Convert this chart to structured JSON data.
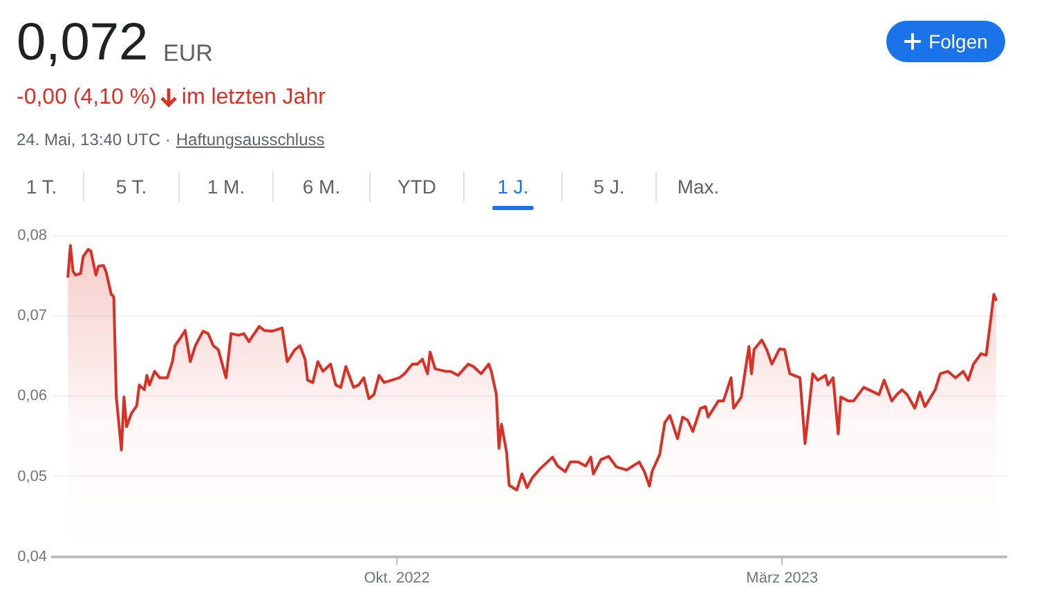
{
  "chart_data": {
    "type": "area",
    "title": "0,072",
    "annotations": [
      "EUR",
      "-0,00 (4,10 %)",
      "im letzten Jahr",
      "24. Mai, 13:40 UTC ·",
      "Haftungsausschluss",
      "1 T.",
      "5 T.",
      "1 M.",
      "6 M.",
      "YTD",
      "1 J.",
      "5 J.",
      "Max.",
      "Folgen"
    ],
    "x": [
      "2022-05-25",
      "2022-05-26",
      "2022-05-27",
      "2022-05-28",
      "2022-05-30",
      "2022-05-31",
      "2022-06-02",
      "2022-06-03",
      "2022-06-05",
      "2022-06-06",
      "2022-06-08",
      "2022-06-09",
      "2022-06-11",
      "2022-06-12",
      "2022-06-13",
      "2022-06-15",
      "2022-06-16",
      "2022-06-17",
      "2022-06-19",
      "2022-06-21",
      "2022-06-22",
      "2022-06-24",
      "2022-06-25",
      "2022-06-26",
      "2022-06-28",
      "2022-06-30",
      "2022-07-03",
      "2022-07-05",
      "2022-07-06",
      "2022-07-08",
      "2022-07-10",
      "2022-07-12",
      "2022-07-14",
      "2022-07-17",
      "2022-07-19",
      "2022-07-21",
      "2022-07-23",
      "2022-07-26",
      "2022-07-28",
      "2022-07-31",
      "2022-08-02",
      "2022-08-04",
      "2022-08-08",
      "2022-08-10",
      "2022-08-13",
      "2022-08-16",
      "2022-08-17",
      "2022-08-19",
      "2022-08-22",
      "2022-08-24",
      "2022-08-26",
      "2022-08-27",
      "2022-08-29",
      "2022-08-31",
      "2022-09-02",
      "2022-09-05",
      "2022-09-07",
      "2022-09-09",
      "2022-09-11",
      "2022-09-14",
      "2022-09-16",
      "2022-09-18",
      "2022-09-20",
      "2022-09-22",
      "2022-09-24",
      "2022-09-26",
      "2022-09-29",
      "2022-10-02",
      "2022-10-04",
      "2022-10-07",
      "2022-10-09",
      "2022-10-11",
      "2022-10-13",
      "2022-10-14",
      "2022-10-16",
      "2022-10-20",
      "2022-10-22",
      "2022-10-25",
      "2022-10-29",
      "2022-10-31",
      "2022-11-03",
      "2022-11-06",
      "2022-11-07",
      "2022-11-09",
      "2022-11-10",
      "2022-11-11",
      "2022-11-13",
      "2022-11-14",
      "2022-11-17",
      "2022-11-19",
      "2022-11-21",
      "2022-11-23",
      "2022-11-26",
      "2022-11-28",
      "2022-12-01",
      "2022-12-03",
      "2022-12-06",
      "2022-12-08",
      "2022-12-11",
      "2022-12-14",
      "2022-12-16",
      "2022-12-17",
      "2022-12-20",
      "2022-12-23",
      "2022-12-26",
      "2022-12-30",
      "2023-01-04",
      "2023-01-06",
      "2023-01-08",
      "2023-01-09",
      "2023-01-12",
      "2023-01-14",
      "2023-01-16",
      "2023-01-19",
      "2023-01-21",
      "2023-01-23",
      "2023-01-25",
      "2023-01-28",
      "2023-01-30",
      "2023-01-31",
      "2023-02-04",
      "2023-02-06",
      "2023-02-09",
      "2023-02-10",
      "2023-02-13",
      "2023-02-16",
      "2023-02-17",
      "2023-02-18",
      "2023-02-21",
      "2023-02-23",
      "2023-02-25",
      "2023-02-28",
      "2023-03-02",
      "2023-03-04",
      "2023-03-08",
      "2023-03-10",
      "2023-03-13",
      "2023-03-15",
      "2023-03-18",
      "2023-03-19",
      "2023-03-21",
      "2023-03-23",
      "2023-03-24",
      "2023-03-27",
      "2023-03-29",
      "2023-04-02",
      "2023-04-06",
      "2023-04-08",
      "2023-04-10",
      "2023-04-13",
      "2023-04-15",
      "2023-04-17",
      "2023-04-19",
      "2023-04-22",
      "2023-04-24",
      "2023-04-26",
      "2023-04-30",
      "2023-05-02",
      "2023-05-05",
      "2023-05-08",
      "2023-05-11",
      "2023-05-13",
      "2023-05-15",
      "2023-05-18",
      "2023-05-20",
      "2023-05-22",
      "2023-05-23",
      "2023-05-24"
    ],
    "series": [
      {
        "color": "#d93025",
        "values": [
          0.0748,
          0.0788,
          0.0756,
          0.0751,
          0.0753,
          0.0774,
          0.0783,
          0.0781,
          0.0751,
          0.0762,
          0.0763,
          0.0755,
          0.0727,
          0.0724,
          0.0599,
          0.0533,
          0.0599,
          0.0562,
          0.0579,
          0.0588,
          0.0614,
          0.0608,
          0.0626,
          0.0614,
          0.0631,
          0.0623,
          0.0623,
          0.0643,
          0.0663,
          0.0672,
          0.0682,
          0.0643,
          0.0663,
          0.0681,
          0.0678,
          0.0663,
          0.0658,
          0.0623,
          0.0678,
          0.0676,
          0.0678,
          0.0668,
          0.0687,
          0.0682,
          0.0681,
          0.0684,
          0.0685,
          0.0643,
          0.0658,
          0.0663,
          0.0646,
          0.062,
          0.0617,
          0.0643,
          0.0631,
          0.064,
          0.0614,
          0.0611,
          0.0637,
          0.0611,
          0.0614,
          0.0623,
          0.0597,
          0.0602,
          0.0626,
          0.0617,
          0.062,
          0.0623,
          0.0628,
          0.064,
          0.064,
          0.0646,
          0.0628,
          0.0655,
          0.0634,
          0.0631,
          0.0631,
          0.0626,
          0.064,
          0.0637,
          0.0628,
          0.064,
          0.0631,
          0.0602,
          0.0535,
          0.0565,
          0.053,
          0.0489,
          0.0483,
          0.0503,
          0.0486,
          0.0498,
          0.0509,
          0.0515,
          0.0524,
          0.0513,
          0.0506,
          0.0518,
          0.0518,
          0.0513,
          0.0524,
          0.0503,
          0.0521,
          0.0525,
          0.0512,
          0.0508,
          0.0518,
          0.0506,
          0.0488,
          0.0506,
          0.0527,
          0.0567,
          0.0576,
          0.0547,
          0.0574,
          0.057,
          0.0556,
          0.0585,
          0.0587,
          0.0574,
          0.0594,
          0.0594,
          0.0623,
          0.0585,
          0.0599,
          0.0662,
          0.0628,
          0.0658,
          0.067,
          0.0658,
          0.064,
          0.0659,
          0.0658,
          0.0628,
          0.0623,
          0.0541,
          0.0628,
          0.062,
          0.0626,
          0.0614,
          0.0623,
          0.0553,
          0.0599,
          0.0594,
          0.0594,
          0.0611,
          0.0605,
          0.0602,
          0.062,
          0.0594,
          0.0602,
          0.0608,
          0.0602,
          0.0585,
          0.0605,
          0.0587,
          0.0608,
          0.0628,
          0.0631,
          0.0623,
          0.0631,
          0.062,
          0.064,
          0.0653,
          0.0651,
          0.0701,
          0.0727,
          0.0719
        ]
      }
    ],
    "xlim": [
      "2022-05-19",
      "2023-05-28"
    ],
    "xticks": [
      {
        "value": "2022-10-01",
        "label": "Okt. 2022"
      },
      {
        "value": "2023-03-01",
        "label": "März 2023"
      }
    ],
    "ylim": [
      0.04,
      0.08
    ],
    "yticks": [
      {
        "value": 0.04,
        "label": "0,04"
      },
      {
        "value": 0.05,
        "label": "0,05"
      },
      {
        "value": 0.06,
        "label": "0,06"
      },
      {
        "value": 0.07,
        "label": "0,07"
      },
      {
        "value": 0.08,
        "label": "0,08"
      }
    ],
    "grid": "y",
    "legend": false,
    "marker": "none",
    "line_style": "solid"
  }
}
